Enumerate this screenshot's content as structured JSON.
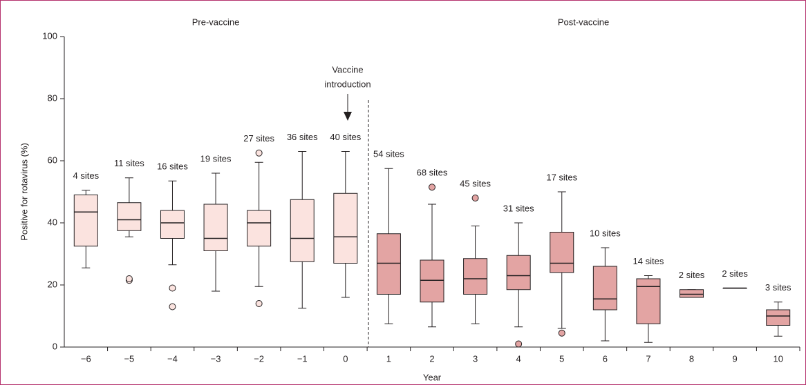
{
  "chart_data": {
    "type": "box",
    "y_label": "Positive for rotavirus (%)",
    "x_label": "Year",
    "annotation": [
      "Vaccine",
      "introduction"
    ],
    "categories": [
      "−6",
      "−5",
      "−4",
      "−3",
      "−2",
      "−1",
      "0",
      "1",
      "2",
      "3",
      "4",
      "5",
      "6",
      "7",
      "8",
      "9",
      "10"
    ],
    "ylim": [
      0,
      100
    ],
    "yticks": [
      0,
      20,
      40,
      60,
      80,
      100
    ],
    "series": [
      {
        "name": "Pre-vaccine",
        "color": "#fbe3df",
        "boxes": [
          {
            "label": "4 sites",
            "whisker_low": 25.5,
            "q1": 32.5,
            "median": 43.5,
            "q3": 49,
            "whisker_high": 50.5,
            "outliers": []
          },
          {
            "label": "11 sites",
            "whisker_low": 35.5,
            "q1": 37.5,
            "median": 41,
            "q3": 46.5,
            "whisker_high": 54.5,
            "outliers": [
              21.5,
              22
            ]
          },
          {
            "label": "16 sites",
            "whisker_low": 26.5,
            "q1": 35,
            "median": 40,
            "q3": 44,
            "whisker_high": 53.5,
            "outliers": [
              19,
              13
            ]
          },
          {
            "label": "19 sites",
            "whisker_low": 18,
            "q1": 31,
            "median": 35,
            "q3": 46,
            "whisker_high": 56,
            "outliers": []
          },
          {
            "label": "27 sites",
            "whisker_low": 19.5,
            "q1": 32.5,
            "median": 40,
            "q3": 44,
            "whisker_high": 59.5,
            "outliers": [
              62.5,
              14
            ]
          },
          {
            "label": "36 sites",
            "whisker_low": 12.5,
            "q1": 27.5,
            "median": 35,
            "q3": 47.5,
            "whisker_high": 63,
            "outliers": []
          },
          {
            "label": "40 sites",
            "whisker_low": 16,
            "q1": 27,
            "median": 35.5,
            "q3": 49.5,
            "whisker_high": 63,
            "outliers": []
          }
        ]
      },
      {
        "name": "Post-vaccine",
        "color": "#e3a4a3",
        "boxes": [
          {
            "label": "54 sites",
            "whisker_low": 7.5,
            "q1": 17,
            "median": 27,
            "q3": 36.5,
            "whisker_high": 57.5,
            "outliers": []
          },
          {
            "label": "68 sites",
            "whisker_low": 6.5,
            "q1": 14.5,
            "median": 21.5,
            "q3": 28,
            "whisker_high": 46,
            "outliers": [
              51.5
            ]
          },
          {
            "label": "45 sites",
            "whisker_low": 7.5,
            "q1": 17,
            "median": 22,
            "q3": 28.5,
            "whisker_high": 39,
            "outliers": [
              48
            ]
          },
          {
            "label": "31 sites",
            "whisker_low": 6.5,
            "q1": 18.5,
            "median": 23,
            "q3": 29.5,
            "whisker_high": 40,
            "outliers": [
              1
            ]
          },
          {
            "label": "17 sites",
            "whisker_low": 6,
            "q1": 24,
            "median": 27,
            "q3": 37,
            "whisker_high": 50,
            "outliers": [
              4.5
            ]
          },
          {
            "label": "10 sites",
            "whisker_low": 2,
            "q1": 12,
            "median": 15.5,
            "q3": 26,
            "whisker_high": 32,
            "outliers": []
          },
          {
            "label": "14 sites",
            "whisker_low": 1.5,
            "q1": 7.5,
            "median": 19.5,
            "q3": 22,
            "whisker_high": 23,
            "outliers": []
          },
          {
            "label": "2 sites",
            "whisker_low": 16,
            "q1": 16,
            "median": 17,
            "q3": 18.5,
            "whisker_high": 18.5,
            "outliers": []
          },
          {
            "label": "2 sites",
            "whisker_low": 19,
            "q1": 19,
            "median": 19,
            "q3": 19,
            "whisker_high": 19,
            "outliers": []
          },
          {
            "label": "3 sites",
            "whisker_low": 3.5,
            "q1": 7,
            "median": 10,
            "q3": 12,
            "whisker_high": 14.5,
            "outliers": []
          }
        ]
      }
    ]
  }
}
